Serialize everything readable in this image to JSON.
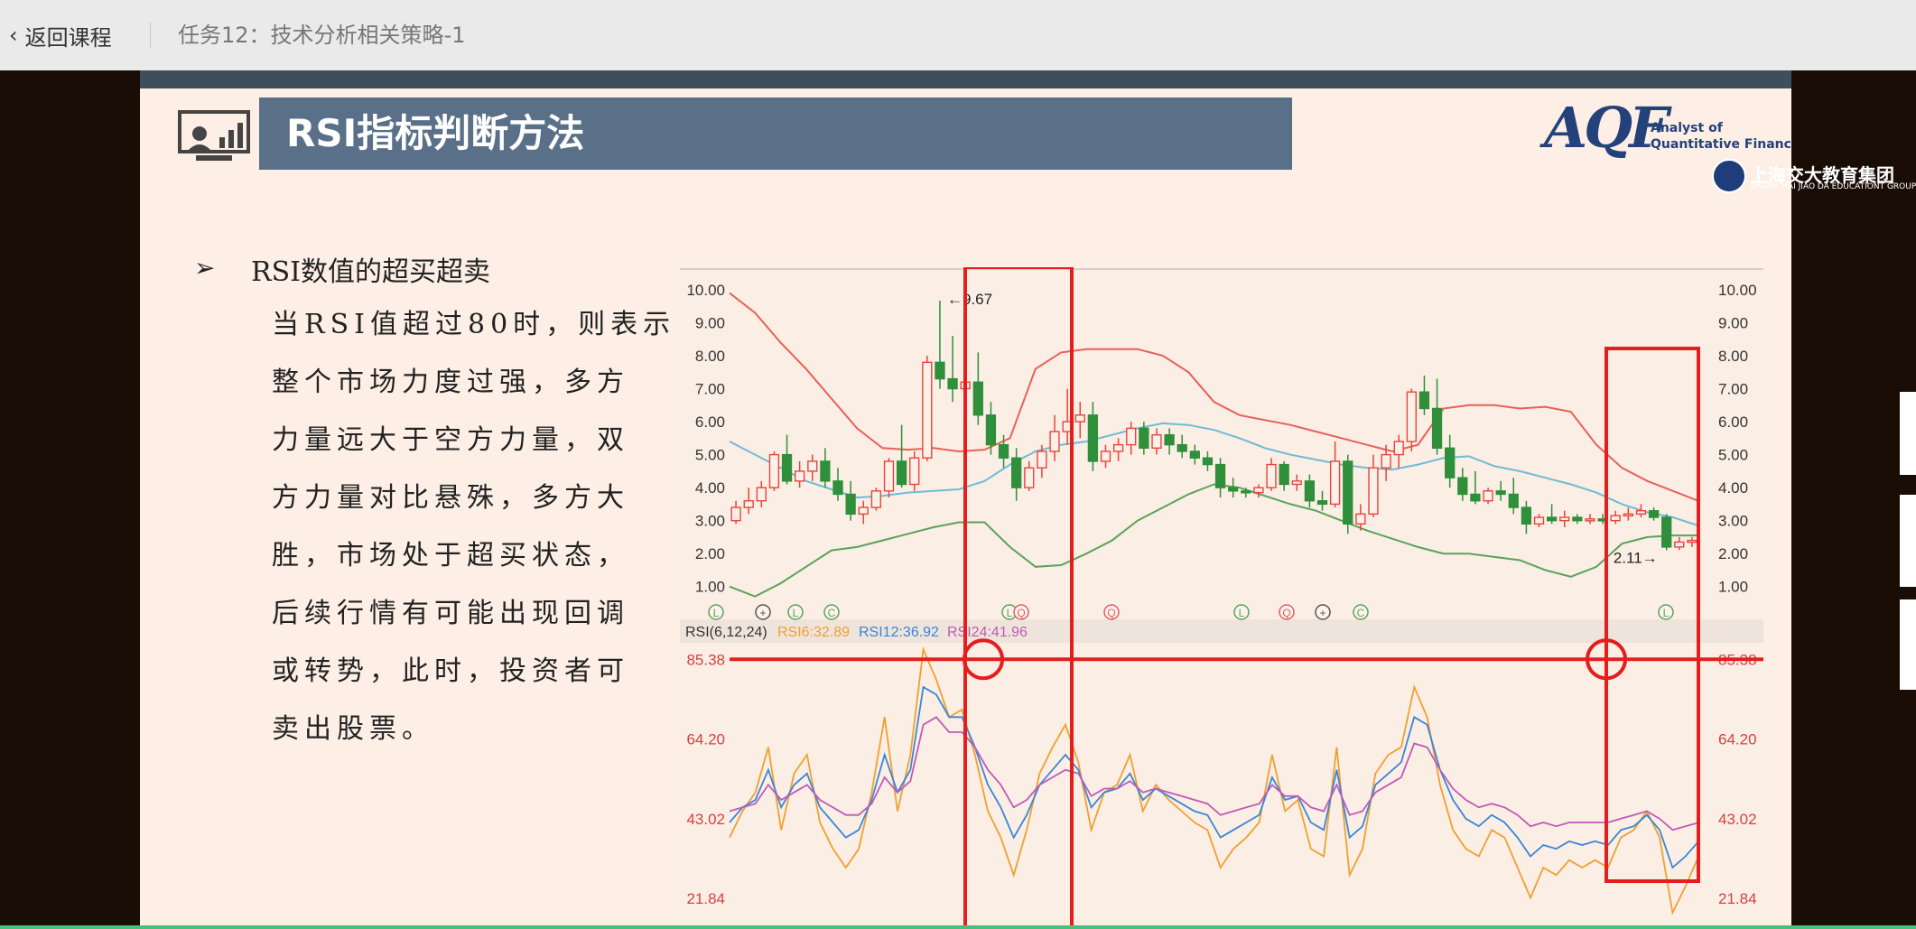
{
  "header": {
    "back_label": "返回课程",
    "task_title": "任务12：技术分析相关策略-1"
  },
  "slide": {
    "title": "RSI指标判断方法",
    "logos": {
      "aqf_mark": "AQF",
      "aqf_sub_1": "Analyst of",
      "aqf_sub_2": "Quantitative Finance",
      "jd_name": "上海交大教育集团",
      "jd_sub": "SHANG HAI JIAO DA EDUCATIONT GROUP"
    },
    "bullet_heading": "RSI数值的超买超卖",
    "body_lines": [
      "当RSI值超过80时，则表示",
      "整个市场力度过强，多方",
      "力量远大于空方力量，双",
      "方力量对比悬殊，多方大",
      "胜，市场处于超买状态，",
      "后续行情有可能出现回调",
      "或转势，此时，投资者可",
      "卖出股票。"
    ]
  },
  "chart_data": [
    {
      "type": "candlestick",
      "price_ticks": [
        "10.00",
        "9.00",
        "8.00",
        "7.00",
        "6.00",
        "5.00",
        "4.00",
        "3.00",
        "2.00",
        "1.00"
      ],
      "ylim": [
        0.5,
        10.3
      ],
      "annotations": {
        "high": "←9.67",
        "low": "2.11→"
      },
      "event_markers": [
        "L",
        "+",
        "L",
        "C",
        "L",
        "Q",
        "Q",
        "L",
        "Q",
        "+",
        "C",
        "L"
      ],
      "bollinger": {
        "upper": [
          9.9,
          9.3,
          8.4,
          7.6,
          6.7,
          5.8,
          5.2,
          5.15,
          5.2,
          5.1,
          5.15,
          5.5,
          7.6,
          8.1,
          8.2,
          8.2,
          8.2,
          8.0,
          7.5,
          6.6,
          6.2,
          6.05,
          5.9,
          5.7,
          5.5,
          5.3,
          5.1,
          5.3,
          6.4,
          6.5,
          6.5,
          6.4,
          6.45,
          6.3,
          5.3,
          4.6,
          4.2,
          3.9,
          3.6
        ],
        "middle": [
          5.4,
          5.0,
          4.6,
          4.2,
          3.95,
          3.7,
          3.75,
          3.85,
          3.9,
          3.95,
          4.2,
          4.7,
          5.1,
          5.3,
          5.4,
          5.6,
          5.8,
          5.95,
          5.9,
          5.75,
          5.5,
          5.2,
          5.0,
          4.85,
          4.7,
          4.6,
          4.55,
          4.7,
          4.9,
          4.95,
          4.65,
          4.5,
          4.3,
          4.1,
          3.85,
          3.5,
          3.25,
          3.1,
          2.85
        ],
        "lower": [
          1.0,
          0.7,
          1.1,
          1.6,
          2.1,
          2.2,
          2.4,
          2.6,
          2.8,
          2.95,
          2.95,
          2.2,
          1.6,
          1.65,
          2.0,
          2.4,
          3.0,
          3.4,
          3.8,
          4.1,
          4.0,
          3.75,
          3.5,
          3.3,
          3.0,
          2.7,
          2.45,
          2.2,
          2.0,
          2.0,
          1.9,
          1.8,
          1.5,
          1.3,
          1.6,
          2.3,
          2.5,
          2.55,
          2.55
        ]
      },
      "candles": [
        {
          "o": 3.0,
          "h": 3.6,
          "l": 2.9,
          "c": 3.4
        },
        {
          "o": 3.4,
          "h": 4.0,
          "l": 3.2,
          "c": 3.6
        },
        {
          "o": 3.6,
          "h": 4.2,
          "l": 3.4,
          "c": 4.0
        },
        {
          "o": 4.0,
          "h": 5.1,
          "l": 3.9,
          "c": 5.0
        },
        {
          "o": 5.0,
          "h": 5.6,
          "l": 4.1,
          "c": 4.2
        },
        {
          "o": 4.2,
          "h": 4.8,
          "l": 4.0,
          "c": 4.5
        },
        {
          "o": 4.5,
          "h": 5.0,
          "l": 4.2,
          "c": 4.8
        },
        {
          "o": 4.8,
          "h": 5.2,
          "l": 4.0,
          "c": 4.2
        },
        {
          "o": 4.2,
          "h": 4.6,
          "l": 3.6,
          "c": 3.8
        },
        {
          "o": 3.8,
          "h": 4.2,
          "l": 3.0,
          "c": 3.2
        },
        {
          "o": 3.2,
          "h": 3.6,
          "l": 2.9,
          "c": 3.4
        },
        {
          "o": 3.4,
          "h": 4.0,
          "l": 3.3,
          "c": 3.9
        },
        {
          "o": 3.9,
          "h": 4.9,
          "l": 3.7,
          "c": 4.8
        },
        {
          "o": 4.8,
          "h": 5.9,
          "l": 4.0,
          "c": 4.1
        },
        {
          "o": 4.1,
          "h": 5.1,
          "l": 3.9,
          "c": 4.9
        },
        {
          "o": 4.9,
          "h": 8.0,
          "l": 4.8,
          "c": 7.8
        },
        {
          "o": 7.8,
          "h": 9.67,
          "l": 7.0,
          "c": 7.3
        },
        {
          "o": 7.3,
          "h": 8.6,
          "l": 6.6,
          "c": 7.0
        },
        {
          "o": 7.0,
          "h": 8.4,
          "l": 6.6,
          "c": 7.2
        },
        {
          "o": 7.2,
          "h": 8.1,
          "l": 5.9,
          "c": 6.2
        },
        {
          "o": 6.2,
          "h": 6.6,
          "l": 5.0,
          "c": 5.3
        },
        {
          "o": 5.3,
          "h": 5.6,
          "l": 4.6,
          "c": 4.9
        },
        {
          "o": 4.9,
          "h": 5.2,
          "l": 3.6,
          "c": 4.0
        },
        {
          "o": 4.0,
          "h": 4.8,
          "l": 3.9,
          "c": 4.6
        },
        {
          "o": 4.6,
          "h": 5.3,
          "l": 4.3,
          "c": 5.1
        },
        {
          "o": 5.1,
          "h": 6.2,
          "l": 4.8,
          "c": 5.7
        },
        {
          "o": 5.7,
          "h": 7.0,
          "l": 5.3,
          "c": 6.0
        },
        {
          "o": 6.0,
          "h": 6.6,
          "l": 5.5,
          "c": 6.2
        },
        {
          "o": 6.2,
          "h": 6.6,
          "l": 4.5,
          "c": 4.8
        },
        {
          "o": 4.8,
          "h": 5.3,
          "l": 4.6,
          "c": 5.1
        },
        {
          "o": 5.1,
          "h": 5.5,
          "l": 4.8,
          "c": 5.3
        },
        {
          "o": 5.3,
          "h": 6.0,
          "l": 5.0,
          "c": 5.8
        },
        {
          "o": 5.8,
          "h": 6.0,
          "l": 5.0,
          "c": 5.2
        },
        {
          "o": 5.2,
          "h": 5.8,
          "l": 5.0,
          "c": 5.6
        },
        {
          "o": 5.6,
          "h": 5.8,
          "l": 5.0,
          "c": 5.3
        },
        {
          "o": 5.3,
          "h": 5.6,
          "l": 4.9,
          "c": 5.1
        },
        {
          "o": 5.1,
          "h": 5.3,
          "l": 4.7,
          "c": 4.9
        },
        {
          "o": 4.9,
          "h": 5.1,
          "l": 4.5,
          "c": 4.7
        },
        {
          "o": 4.7,
          "h": 4.9,
          "l": 3.7,
          "c": 4.0
        },
        {
          "o": 4.0,
          "h": 4.3,
          "l": 3.7,
          "c": 3.9
        },
        {
          "o": 3.9,
          "h": 4.0,
          "l": 3.7,
          "c": 3.85
        },
        {
          "o": 3.85,
          "h": 4.1,
          "l": 3.7,
          "c": 4.0
        },
        {
          "o": 4.0,
          "h": 4.9,
          "l": 3.9,
          "c": 4.7
        },
        {
          "o": 4.7,
          "h": 4.8,
          "l": 3.9,
          "c": 4.1
        },
        {
          "o": 4.1,
          "h": 4.4,
          "l": 3.9,
          "c": 4.2
        },
        {
          "o": 4.2,
          "h": 4.4,
          "l": 3.4,
          "c": 3.6
        },
        {
          "o": 3.6,
          "h": 3.9,
          "l": 3.3,
          "c": 3.5
        },
        {
          "o": 3.5,
          "h": 5.4,
          "l": 3.4,
          "c": 4.8
        },
        {
          "o": 4.8,
          "h": 5.0,
          "l": 2.6,
          "c": 2.9
        },
        {
          "o": 2.9,
          "h": 3.5,
          "l": 2.7,
          "c": 3.2
        },
        {
          "o": 3.2,
          "h": 5.0,
          "l": 3.1,
          "c": 4.6
        },
        {
          "o": 4.6,
          "h": 5.3,
          "l": 4.2,
          "c": 5.0
        },
        {
          "o": 5.0,
          "h": 5.6,
          "l": 4.6,
          "c": 5.4
        },
        {
          "o": 5.4,
          "h": 7.0,
          "l": 5.1,
          "c": 6.9
        },
        {
          "o": 6.9,
          "h": 7.4,
          "l": 6.2,
          "c": 6.4
        },
        {
          "o": 6.4,
          "h": 7.3,
          "l": 5.0,
          "c": 5.2
        },
        {
          "o": 5.2,
          "h": 5.6,
          "l": 4.0,
          "c": 4.3
        },
        {
          "o": 4.3,
          "h": 4.6,
          "l": 3.6,
          "c": 3.8
        },
        {
          "o": 3.8,
          "h": 4.5,
          "l": 3.5,
          "c": 3.6
        },
        {
          "o": 3.6,
          "h": 4.0,
          "l": 3.5,
          "c": 3.9
        },
        {
          "o": 3.9,
          "h": 4.2,
          "l": 3.6,
          "c": 3.8
        },
        {
          "o": 3.8,
          "h": 4.3,
          "l": 3.2,
          "c": 3.4
        },
        {
          "o": 3.4,
          "h": 3.6,
          "l": 2.6,
          "c": 2.9
        },
        {
          "o": 2.9,
          "h": 3.2,
          "l": 2.8,
          "c": 3.1
        },
        {
          "o": 3.1,
          "h": 3.5,
          "l": 2.9,
          "c": 3.0
        },
        {
          "o": 3.0,
          "h": 3.3,
          "l": 2.8,
          "c": 3.1
        },
        {
          "o": 3.1,
          "h": 3.2,
          "l": 2.9,
          "c": 3.0
        },
        {
          "o": 3.0,
          "h": 3.2,
          "l": 2.9,
          "c": 3.05
        },
        {
          "o": 3.05,
          "h": 3.2,
          "l": 2.9,
          "c": 3.0
        },
        {
          "o": 3.0,
          "h": 3.3,
          "l": 2.9,
          "c": 3.15
        },
        {
          "o": 3.15,
          "h": 3.4,
          "l": 3.0,
          "c": 3.2
        },
        {
          "o": 3.2,
          "h": 3.5,
          "l": 3.1,
          "c": 3.3
        },
        {
          "o": 3.3,
          "h": 3.4,
          "l": 3.0,
          "c": 3.1
        },
        {
          "o": 3.1,
          "h": 3.2,
          "l": 2.1,
          "c": 2.2
        },
        {
          "o": 2.2,
          "h": 2.5,
          "l": 2.11,
          "c": 2.35
        },
        {
          "o": 2.35,
          "h": 2.5,
          "l": 2.2,
          "c": 2.4
        }
      ],
      "colors": {
        "up": "#e8443a",
        "down": "#2f8f3a",
        "upper_band": "#e8605a",
        "middle_band": "#6fbcd6",
        "lower_band": "#5aa35c"
      }
    },
    {
      "type": "line",
      "indicator_label": "RSI(6,12,24)",
      "series_labels": [
        "RSI6:32.89",
        "RSI12:36.92",
        "RSI24:41.96"
      ],
      "y_ticks": [
        "85.38",
        "64.20",
        "43.02",
        "21.84"
      ],
      "ylim": [
        18,
        90
      ],
      "threshold": 85.38,
      "series": [
        {
          "name": "RSI6",
          "color": "#f0a030",
          "values": [
            38,
            45,
            50,
            62,
            40,
            55,
            60,
            42,
            35,
            30,
            35,
            50,
            70,
            45,
            60,
            88,
            80,
            70,
            72,
            60,
            45,
            38,
            28,
            40,
            55,
            62,
            68,
            58,
            40,
            50,
            52,
            60,
            45,
            52,
            48,
            45,
            42,
            40,
            30,
            35,
            38,
            42,
            60,
            45,
            48,
            35,
            33,
            62,
            28,
            35,
            55,
            60,
            62,
            78,
            70,
            52,
            40,
            35,
            33,
            40,
            38,
            30,
            22,
            30,
            28,
            32,
            30,
            32,
            30,
            38,
            40,
            45,
            38,
            18,
            25,
            32.89
          ]
        },
        {
          "name": "RSI12",
          "color": "#3a86d8",
          "values": [
            42,
            46,
            48,
            56,
            46,
            52,
            55,
            46,
            42,
            38,
            40,
            48,
            60,
            50,
            56,
            78,
            76,
            70,
            70,
            62,
            52,
            46,
            38,
            44,
            52,
            56,
            60,
            56,
            46,
            50,
            51,
            55,
            48,
            51,
            49,
            47,
            45,
            44,
            38,
            40,
            42,
            44,
            54,
            48,
            49,
            42,
            40,
            56,
            38,
            41,
            52,
            55,
            58,
            70,
            68,
            56,
            48,
            43,
            41,
            44,
            42,
            38,
            33,
            36,
            35,
            37,
            36,
            37,
            36,
            40,
            41,
            44,
            40,
            30,
            33,
            36.92
          ]
        },
        {
          "name": "RSI24",
          "color": "#c05ab8",
          "values": [
            45,
            46,
            47,
            52,
            48,
            50,
            52,
            48,
            46,
            44,
            44,
            47,
            54,
            50,
            53,
            68,
            70,
            66,
            66,
            62,
            56,
            52,
            46,
            48,
            52,
            54,
            56,
            55,
            49,
            51,
            51,
            53,
            50,
            51,
            50,
            49,
            48,
            47,
            44,
            45,
            46,
            47,
            52,
            49,
            49,
            46,
            45,
            52,
            44,
            45,
            50,
            52,
            54,
            63,
            62,
            56,
            51,
            48,
            46,
            47,
            46,
            44,
            41,
            42,
            41,
            42,
            42,
            42,
            42,
            43,
            44,
            45,
            43,
            40,
            41,
            41.96
          ]
        }
      ]
    }
  ]
}
